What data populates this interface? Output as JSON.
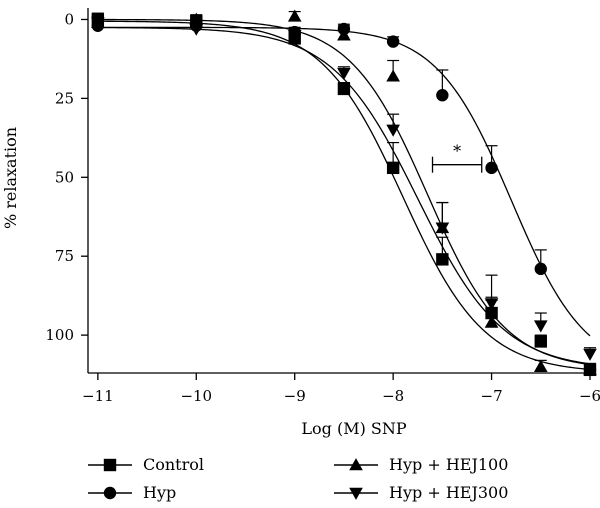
{
  "chart_data": {
    "type": "scatter",
    "xlabel": "Log (M) SNP",
    "ylabel": "% relaxation",
    "x_ticks": [
      -11,
      -10,
      -9,
      -8,
      -7,
      -6
    ],
    "x_tick_labels": [
      "−11",
      "−10",
      "−9",
      "−8",
      "−7",
      "−6"
    ],
    "y_ticks": [
      0,
      25,
      50,
      75,
      100
    ],
    "y_tick_labels": [
      "0",
      "25",
      "50",
      "75",
      "100"
    ],
    "xlim": [
      -11.1,
      -6.0
    ],
    "ylim": [
      -3,
      112
    ],
    "y_inverted": true,
    "grid": false,
    "legend_position": "bottom",
    "annotation": "*",
    "series": [
      {
        "name": "Control",
        "marker": "square",
        "x": [
          -11,
          -10,
          -9,
          -8.5,
          -8,
          -7.5,
          -7,
          -6.5,
          -6
        ],
        "y": [
          0,
          0.5,
          6,
          22,
          47,
          76,
          93,
          102,
          111
        ],
        "err": [
          2,
          1.5,
          1.5,
          2,
          8,
          7,
          5,
          2,
          2
        ]
      },
      {
        "name": "Hyp",
        "marker": "circle",
        "x": [
          -11,
          -10,
          -9,
          -8.5,
          -8,
          -7.5,
          -7,
          -6.5,
          -6
        ],
        "y": [
          2,
          2,
          4,
          3,
          7,
          24,
          47,
          79,
          111
        ],
        "err": [
          2,
          2,
          1.5,
          1.5,
          1.5,
          8,
          7,
          6,
          2
        ]
      },
      {
        "name": "Hyp + HEJ100",
        "marker": "triangle-up",
        "x": [
          -11,
          -10,
          -9,
          -8.5,
          -8,
          -7.5,
          -7,
          -6.5,
          -6
        ],
        "y": [
          1,
          0,
          -1,
          5,
          18,
          66,
          96,
          110,
          111
        ],
        "err": [
          2,
          1.5,
          1.5,
          3,
          5,
          8,
          7,
          2,
          2
        ]
      },
      {
        "name": "Hyp + HEJ300",
        "marker": "triangle-down",
        "x": [
          -11,
          -10,
          -9,
          -8.5,
          -8,
          -7.5,
          -7,
          -6.5,
          -6
        ],
        "y": [
          1,
          3,
          5,
          17,
          35,
          66,
          90,
          97,
          106
        ],
        "err": [
          2,
          1.5,
          1.5,
          2,
          5,
          8,
          9,
          4,
          2
        ]
      }
    ],
    "fit_logec50": [
      -7.9,
      -6.8,
      -7.65,
      -7.75
    ],
    "fit_hill": [
      1.05,
      1.15,
      1.1,
      1.0
    ],
    "fit_top": [
      112,
      112,
      111,
      111
    ],
    "fit_bottom": [
      0.5,
      2.5,
      0,
      2.5
    ]
  }
}
